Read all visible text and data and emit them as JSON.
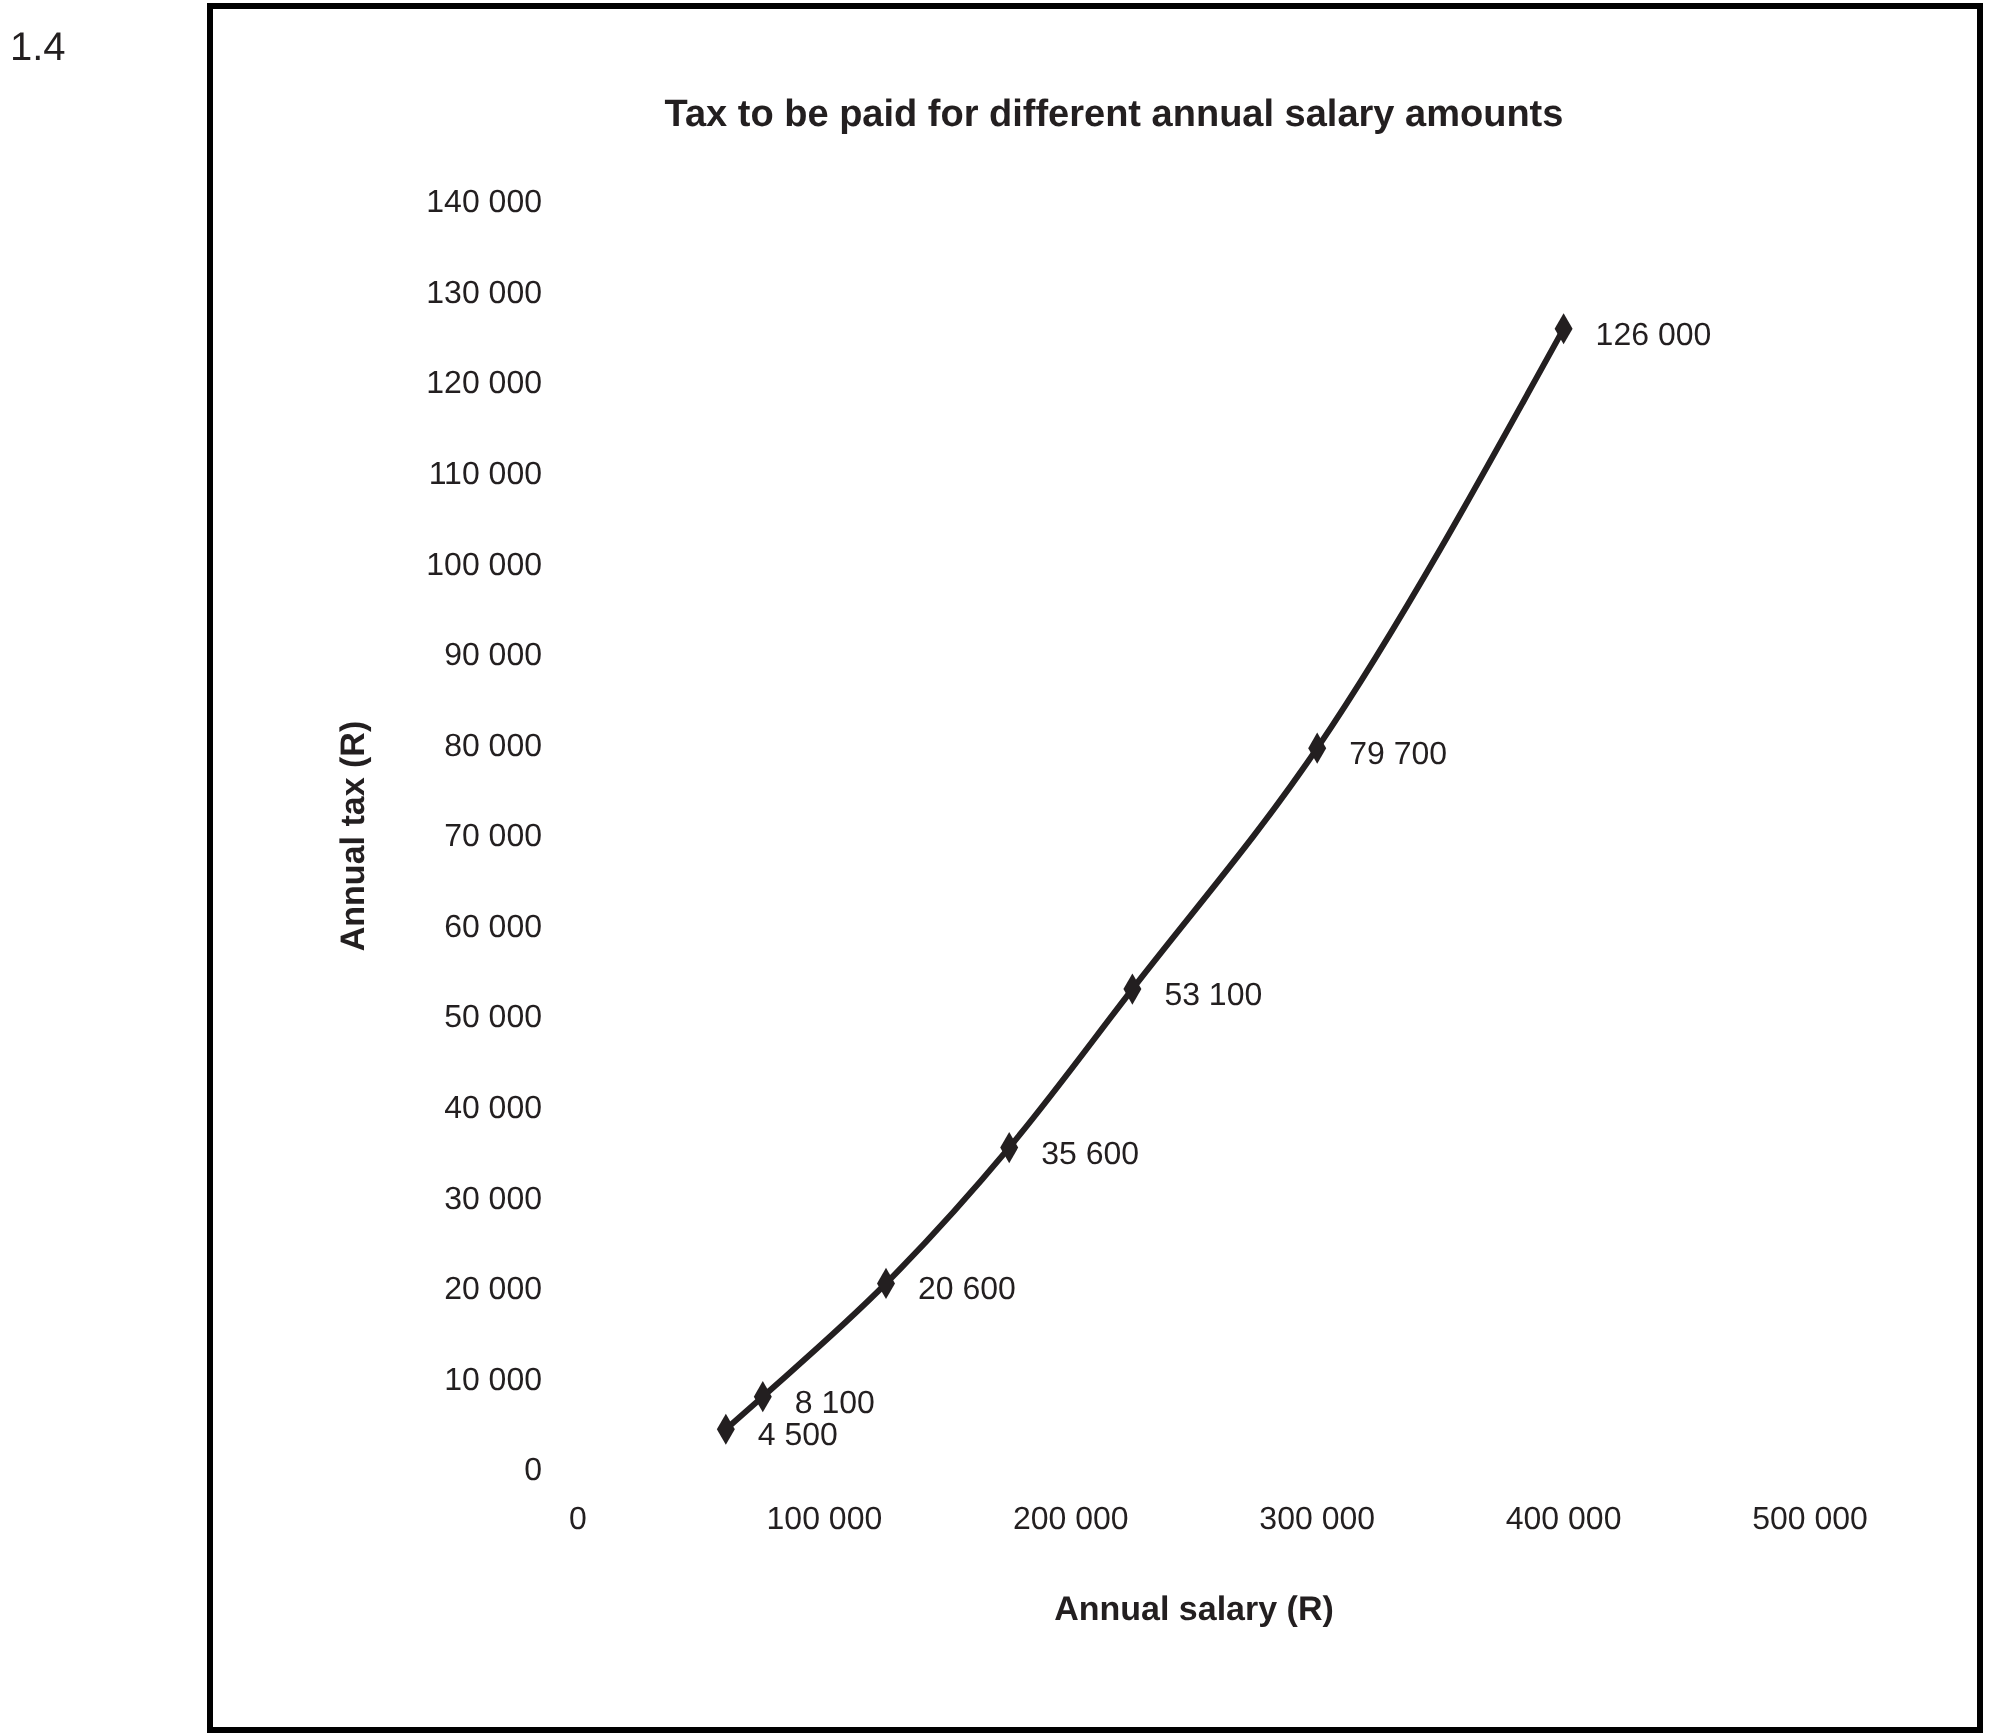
{
  "chart_data": {
    "type": "line",
    "title": "Tax to be paid for different annual salary amounts",
    "xlabel": "Annual salary (R)",
    "ylabel": "Annual tax (R)",
    "annotations": [
      "1.4"
    ],
    "x": [
      60000,
      75000,
      125000,
      175000,
      225000,
      300000,
      400000
    ],
    "series": [
      {
        "color": "#231f20",
        "values": [
          4500,
          8100,
          20600,
          35600,
          53100,
          79700,
          126000
        ],
        "value_labels": [
          "4 500",
          "8 100",
          "20 600",
          "35 600",
          "53 100",
          "79 700",
          "126 000"
        ]
      }
    ],
    "xlim": [
      0,
      500000
    ],
    "xticks": [
      {
        "value": 0,
        "label": "0"
      },
      {
        "value": 100000,
        "label": "100 000"
      },
      {
        "value": 200000,
        "label": "200 000"
      },
      {
        "value": 300000,
        "label": "300 000"
      },
      {
        "value": 400000,
        "label": "400 000"
      },
      {
        "value": 500000,
        "label": "500 000"
      }
    ],
    "ylim": [
      0,
      140000
    ],
    "yticks": [
      {
        "value": 0,
        "label": "0"
      },
      {
        "value": 10000,
        "label": "10 000"
      },
      {
        "value": 20000,
        "label": "20 000"
      },
      {
        "value": 30000,
        "label": "30 000"
      },
      {
        "value": 40000,
        "label": "40 000"
      },
      {
        "value": 50000,
        "label": "50 000"
      },
      {
        "value": 60000,
        "label": "60 000"
      },
      {
        "value": 70000,
        "label": "70 000"
      },
      {
        "value": 80000,
        "label": "80 000"
      },
      {
        "value": 90000,
        "label": "90 000"
      },
      {
        "value": 100000,
        "label": "100 000"
      },
      {
        "value": 110000,
        "label": "110 000"
      },
      {
        "value": 120000,
        "label": "120 000"
      },
      {
        "value": 130000,
        "label": "130 000"
      },
      {
        "value": 140000,
        "label": "140 000"
      }
    ],
    "marker": "diamond",
    "line_style": "solid"
  }
}
